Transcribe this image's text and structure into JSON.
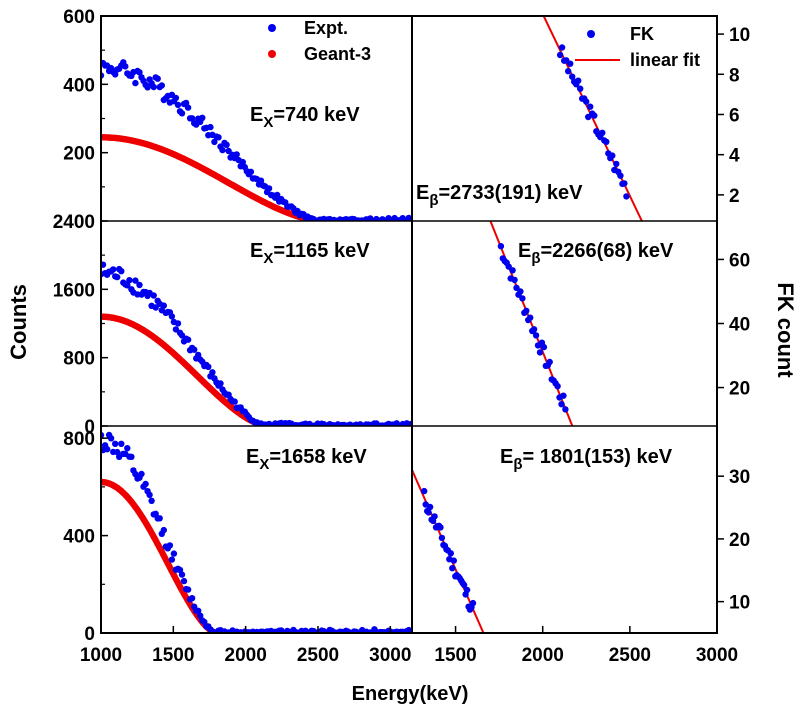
{
  "chart_data": {
    "type": "scatter",
    "xlabel": "Energy(keV)",
    "left_ylabel": "Counts",
    "right_ylabel": "FK count",
    "left_x_ticks": [
      "1000",
      "1500",
      "2000",
      "2500",
      "3000"
    ],
    "right_x_ticks": [
      "1500",
      "2000",
      "2500",
      "3000"
    ],
    "left_xlim": [
      1000,
      3150
    ],
    "right_xlim": [
      1250,
      3000
    ],
    "legend_left": [
      {
        "label": "Expt.",
        "color": "#0000ee"
      },
      {
        "label": "Geant-3",
        "color": "#ee0000"
      }
    ],
    "legend_right": [
      {
        "label": "FK",
        "color": "#0000ee"
      },
      {
        "label": "linear fit",
        "color": "#ee0000"
      }
    ],
    "panels": [
      {
        "name": "row-1",
        "ex_prefix": "E",
        "ex_sub": "X",
        "ex_value": "=740 keV",
        "eb_prefix": "E",
        "eb_sub": "β",
        "eb_value": "=2733(191) keV",
        "left_ylim": [
          0,
          600
        ],
        "left_yticks": [
          "200",
          "400",
          "600"
        ],
        "right_ylim": [
          0.7,
          10.9
        ],
        "right_yticks": [
          "2",
          "4",
          "6",
          "8",
          "10"
        ],
        "expt_peak": 450,
        "geant_peak": 245,
        "end_kev": 2520,
        "fk_fit": [
          [
            2000,
            11
          ],
          [
            2580,
            0.5
          ]
        ],
        "fk_x_range": [
          2100,
          2480
        ],
        "fk_seed": 3
      },
      {
        "name": "row-2",
        "ex_prefix": "E",
        "ex_sub": "X",
        "ex_value": "=1165 keV",
        "eb_prefix": "E",
        "eb_sub": "β",
        "eb_value": "=2266(68) keV",
        "left_ylim": [
          0,
          2400
        ],
        "left_yticks": [
          "0",
          "800",
          "1600",
          "2400"
        ],
        "right_ylim": [
          8,
          72
        ],
        "right_yticks": [
          "20",
          "40",
          "60"
        ],
        "expt_peak": 1800,
        "geant_peak": 1280,
        "end_kev": 2150,
        "fk_fit": [
          [
            1700,
            72
          ],
          [
            2170,
            8
          ]
        ],
        "fk_x_range": [
          1760,
          2130
        ],
        "fk_seed": 7
      },
      {
        "name": "row-3",
        "ex_prefix": "E",
        "ex_sub": "X",
        "ex_value": "=1658 keV",
        "eb_prefix": "E",
        "eb_sub": "β",
        "eb_value": "= 1801(153) keV",
        "left_ylim": [
          0,
          850
        ],
        "left_yticks": [
          "0",
          "400",
          "800"
        ],
        "right_ylim": [
          5,
          38
        ],
        "right_yticks": [
          "10",
          "20",
          "30"
        ],
        "expt_peak": 790,
        "geant_peak": 620,
        "end_kev": 1800,
        "fk_fit": [
          [
            1250,
            31
          ],
          [
            1660,
            5
          ]
        ],
        "fk_x_range": [
          1320,
          1600
        ],
        "fk_seed": 11
      }
    ]
  }
}
